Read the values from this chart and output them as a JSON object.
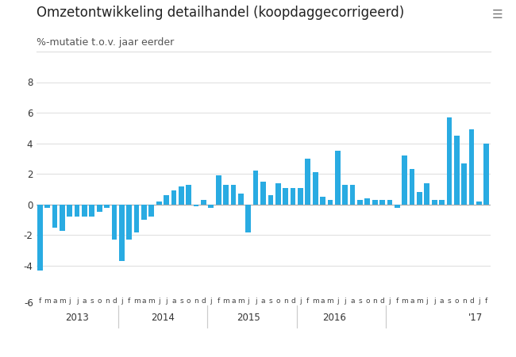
{
  "title": "Omzetontwikkeling detailhandel (koopdaggecorrigeerd)",
  "subtitle": "%-mutatie t.o.v. jaar eerder",
  "bar_color": "#29abe2",
  "background_color": "#ffffff",
  "plot_bg_color": "#ffffff",
  "ylim": [
    -6,
    8
  ],
  "yticks": [
    -4,
    -2,
    0,
    2,
    4,
    6,
    8
  ],
  "grid_color": "#e0e0e0",
  "title_fontsize": 12,
  "subtitle_fontsize": 9,
  "values": [
    -4.3,
    -0.2,
    -1.5,
    -1.7,
    -0.8,
    -0.8,
    -0.8,
    -0.8,
    -0.5,
    -0.2,
    -2.3,
    -3.7,
    -2.3,
    -1.8,
    -1.0,
    -0.8,
    0.2,
    0.6,
    0.9,
    1.2,
    1.3,
    -0.1,
    0.3,
    -0.2,
    1.9,
    1.3,
    1.3,
    0.7,
    -1.8,
    2.2,
    1.5,
    0.6,
    1.4,
    1.1,
    1.1,
    1.1,
    3.0,
    2.1,
    0.5,
    0.3,
    3.5,
    1.3,
    1.3,
    0.3,
    0.4,
    0.3,
    0.3,
    0.3,
    -0.2,
    3.2,
    2.3,
    0.8,
    1.4,
    0.3,
    0.3,
    5.7,
    4.5,
    2.7,
    4.9,
    0.2,
    4.0
  ],
  "labels": [
    "f",
    "m",
    "a",
    "m",
    "j",
    "j",
    "a",
    "s",
    "o",
    "n",
    "d",
    "j",
    "f",
    "m",
    "a",
    "m",
    "j",
    "j",
    "a",
    "s",
    "o",
    "n",
    "d",
    "j",
    "f",
    "m",
    "a",
    "m",
    "j",
    "j",
    "a",
    "s",
    "o",
    "n",
    "d",
    "j",
    "f",
    "m",
    "a",
    "m",
    "j",
    "j",
    "a",
    "s",
    "o",
    "n",
    "d",
    "j",
    "f",
    "m",
    "a",
    "m",
    "j",
    "j",
    "a",
    "s",
    "o",
    "n",
    "d",
    "j",
    "f"
  ],
  "year_labels": [
    "2013",
    "2014",
    "2015",
    "2016",
    "'17"
  ],
  "year_centers": [
    5.0,
    16.5,
    28.0,
    39.5,
    58.5
  ],
  "year_boundaries": [
    -0.5,
    10.5,
    22.5,
    34.5,
    46.5,
    61.5
  ],
  "year_band_color": "#eeeeee",
  "separator_color": "#cccccc"
}
